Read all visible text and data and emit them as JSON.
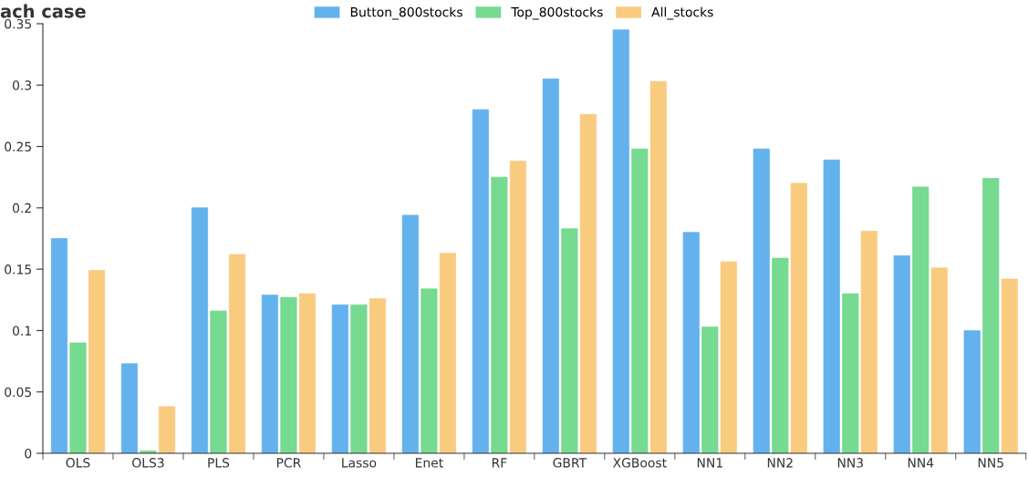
{
  "chart_data": {
    "type": "bar",
    "title": "ach case",
    "categories": [
      "OLS",
      "OLS3",
      "PLS",
      "PCR",
      "Lasso",
      "Enet",
      "RF",
      "GBRT",
      "XGBoost",
      "NN1",
      "NN2",
      "NN3",
      "NN4",
      "NN5"
    ],
    "series": [
      {
        "name": "Button_800stocks",
        "color": "#63b2ee",
        "values": [
          0.175,
          0.073,
          0.2,
          0.129,
          0.121,
          0.194,
          0.28,
          0.305,
          0.345,
          0.18,
          0.248,
          0.239,
          0.161,
          0.1
        ]
      },
      {
        "name": "Top_800stocks",
        "color": "#76da91",
        "values": [
          0.09,
          0.002,
          0.116,
          0.127,
          0.121,
          0.134,
          0.225,
          0.183,
          0.248,
          0.103,
          0.159,
          0.13,
          0.217,
          0.224
        ]
      },
      {
        "name": "All_stocks",
        "color": "#f8cb7f",
        "values": [
          0.149,
          0.038,
          0.162,
          0.13,
          0.126,
          0.163,
          0.238,
          0.276,
          0.303,
          0.156,
          0.22,
          0.181,
          0.151,
          0.142
        ]
      }
    ],
    "ylim": [
      0,
      0.35
    ],
    "yticks": [
      0,
      0.05,
      0.1,
      0.15,
      0.2,
      0.25,
      0.3,
      0.35
    ],
    "grid": false,
    "legend": "top"
  }
}
